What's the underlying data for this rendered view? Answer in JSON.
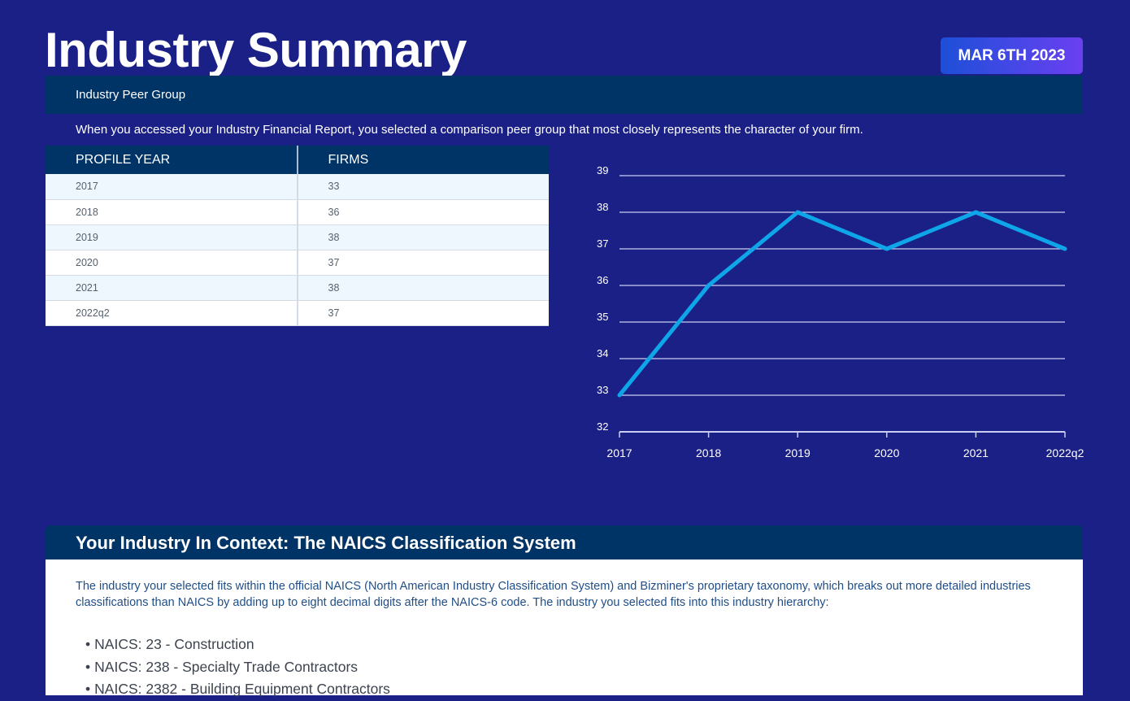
{
  "header": {
    "title": "Industry Summary",
    "date": "MAR 6TH 2023"
  },
  "peer_group": {
    "heading": "Industry Peer Group",
    "description": "When you accessed your Industry Financial Report, you selected a comparison peer group that most closely represents the character of your firm.",
    "table": {
      "columns": [
        "PROFILE YEAR",
        "FIRMS"
      ],
      "rows": [
        {
          "year": "2017",
          "firms": "33"
        },
        {
          "year": "2018",
          "firms": "36"
        },
        {
          "year": "2019",
          "firms": "38"
        },
        {
          "year": "2020",
          "firms": "37"
        },
        {
          "year": "2021",
          "firms": "38"
        },
        {
          "year": "2022q2",
          "firms": "37"
        }
      ]
    }
  },
  "chart_data": {
    "type": "line",
    "categories": [
      "2017",
      "2018",
      "2019",
      "2020",
      "2021",
      "2022q2"
    ],
    "values": [
      33,
      36,
      38,
      37,
      38,
      37
    ],
    "ylim": [
      32,
      39
    ],
    "yticks": [
      32,
      33,
      34,
      35,
      36,
      37,
      38,
      39
    ],
    "grid": true,
    "line_color": "#0ea5e9"
  },
  "context": {
    "heading": "Your Industry In Context: The NAICS Classification System",
    "description": "The industry your selected fits within the official NAICS (North American Industry Classification System) and Bizminer's proprietary taxonomy, which breaks out more detailed industries classifications than NAICS by adding up to eight decimal digits after the NAICS-6 code. The industry you selected fits into this industry hierarchy:",
    "hierarchy": [
      "NAICS: 23 - Construction",
      "NAICS: 238 - Specialty Trade Contractors",
      "NAICS: 2382 - Building Equipment Contractors"
    ]
  }
}
